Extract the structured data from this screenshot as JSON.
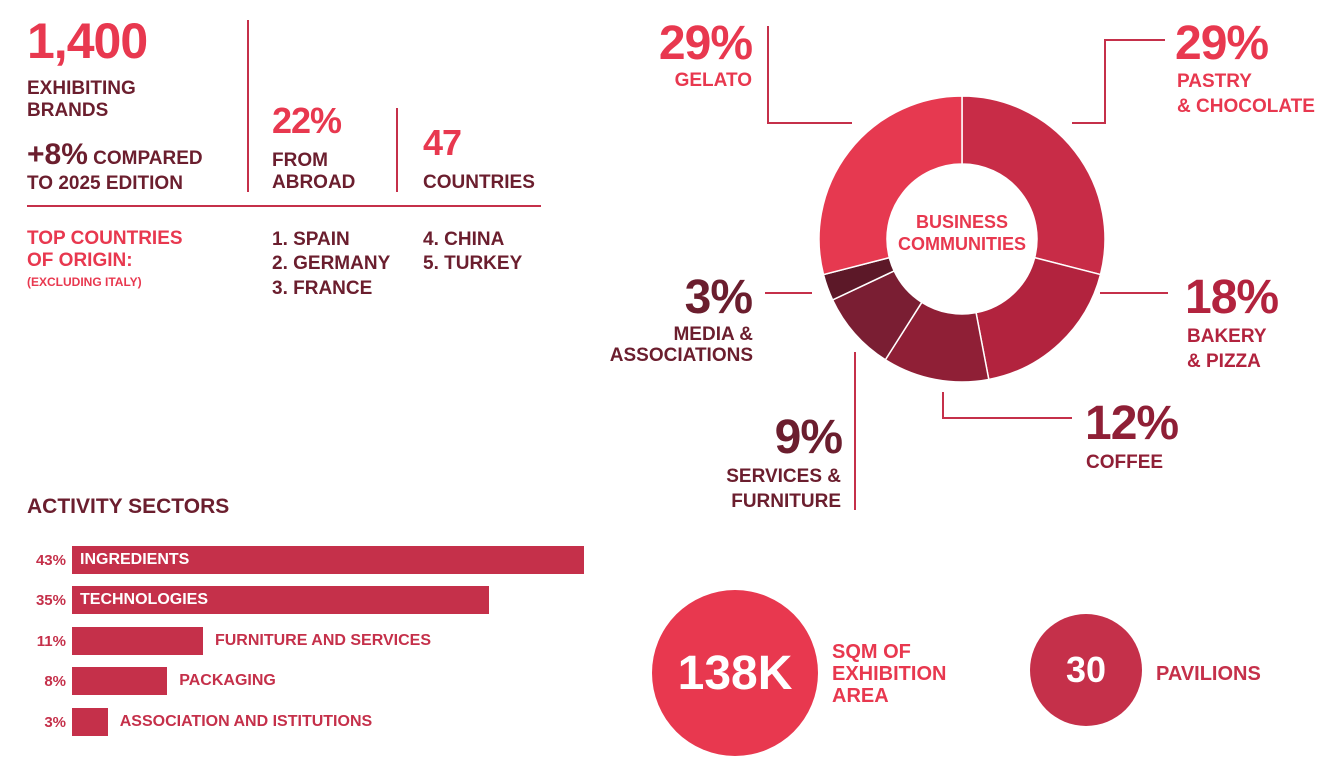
{
  "brands": {
    "value": "1,400",
    "label_line1": "EXHIBITING",
    "label_line2": "BRANDS",
    "growth": "+8%",
    "growth_text1": "COMPARED",
    "growth_text2": "TO 2025 EDITION"
  },
  "abroad": {
    "value": "22%",
    "line1": "FROM",
    "line2": "ABROAD"
  },
  "countries": {
    "value": "47",
    "label": "COUNTRIES"
  },
  "top_countries": {
    "title_line1": "TOP COUNTRIES",
    "title_line2": "OF ORIGIN:",
    "note": "(EXCLUDING ITALY)",
    "col1": [
      "1. SPAIN",
      "2. GERMANY",
      "3. FRANCE"
    ],
    "col2": [
      "4. CHINA",
      "5. TURKEY"
    ]
  },
  "donut_center": {
    "line1": "BUSINESS",
    "line2": "COMMUNITIES"
  },
  "colors": {
    "accent": "#e8384f",
    "rose": "#c5304a",
    "dark": "#6b1e2e"
  },
  "chart_data": [
    {
      "type": "pie",
      "title": "BUSINESS COMMUNITIES",
      "slices": [
        {
          "pct": "29%",
          "value": 29,
          "l1": "PASTRY",
          "l2": "& CHOCOLATE",
          "color": "#c82c47"
        },
        {
          "pct": "18%",
          "value": 18,
          "l1": "BAKERY",
          "l2": "& PIZZA",
          "color": "#b2233e"
        },
        {
          "pct": "12%",
          "value": 12,
          "l1": "COFFEE",
          "l2": "",
          "color": "#8f1f36"
        },
        {
          "pct": "9%",
          "value": 9,
          "l1": "SERVICES &",
          "l2": "FURNITURE",
          "color": "#7a1e33"
        },
        {
          "pct": "3%",
          "value": 3,
          "l1": "MEDIA &",
          "l2": "ASSOCIATIONS",
          "color": "#5c1828"
        },
        {
          "pct": "29%",
          "value": 29,
          "l1": "GELATO",
          "l2": "",
          "color": "#e63950"
        }
      ]
    },
    {
      "type": "bar",
      "title": "ACTIVITY SECTORS",
      "categories": [
        "INGREDIENTS",
        "TECHNOLOGIES",
        "FURNITURE AND SERVICES",
        "PACKAGING",
        "ASSOCIATION AND ISTITUTIONS"
      ],
      "labels": [
        "43%",
        "35%",
        "11%",
        "8%",
        "3%"
      ],
      "values": [
        43,
        35,
        11,
        8,
        3
      ]
    }
  ],
  "area": {
    "value": "138K",
    "l1": "SQM OF",
    "l2": "EXHIBITION",
    "l3": "AREA"
  },
  "pavilions": {
    "value": "30",
    "label": "PAVILIONS"
  }
}
